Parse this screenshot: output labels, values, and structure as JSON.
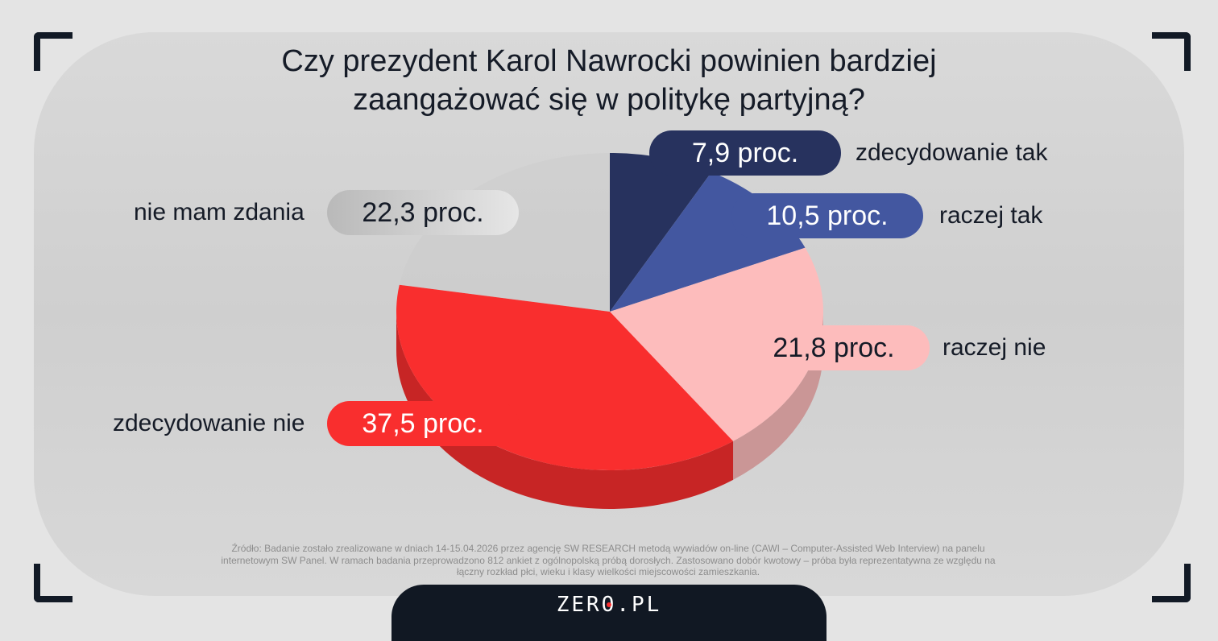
{
  "title": "Czy prezydent Karol Nawrocki powinien bardziej zaangażować się w politykę partyjną?",
  "chart_data": {
    "type": "pie",
    "title": "Czy prezydent Karol Nawrocki powinien bardziej zaangażować się w politykę partyjną?",
    "categories": [
      "zdecydowanie tak",
      "raczej tak",
      "raczej nie",
      "zdecydowanie nie",
      "nie mam zdania"
    ],
    "values": [
      7.9,
      10.5,
      21.8,
      37.5,
      22.3
    ],
    "value_labels": [
      "7,9 proc.",
      "10,5 proc.",
      "21,8 proc.",
      "37,5 proc.",
      "22,3 proc."
    ],
    "colors": [
      "#27325e",
      "#4357a0",
      "#fdbcbc",
      "#f92e2e",
      "#c9c9c9"
    ]
  },
  "source": "Źródło: Badanie zostało zrealizowane w dniach 14-15.04.2026 przez agencję SW RESEARCH metodą wywiadów on-line (CAWI – Computer-Assisted Web Interview) na panelu internetowym SW Panel. W ramach badania przeprowadzono 812 ankiet z ogólnopolską próbą dorosłych. Zastosowano dobór kwotowy – próba była reprezentatywna ze względu na łączny rozkład płci, wieku i klasy wielkości miejscowości zamieszkania.",
  "logo": "ZERO.PL"
}
